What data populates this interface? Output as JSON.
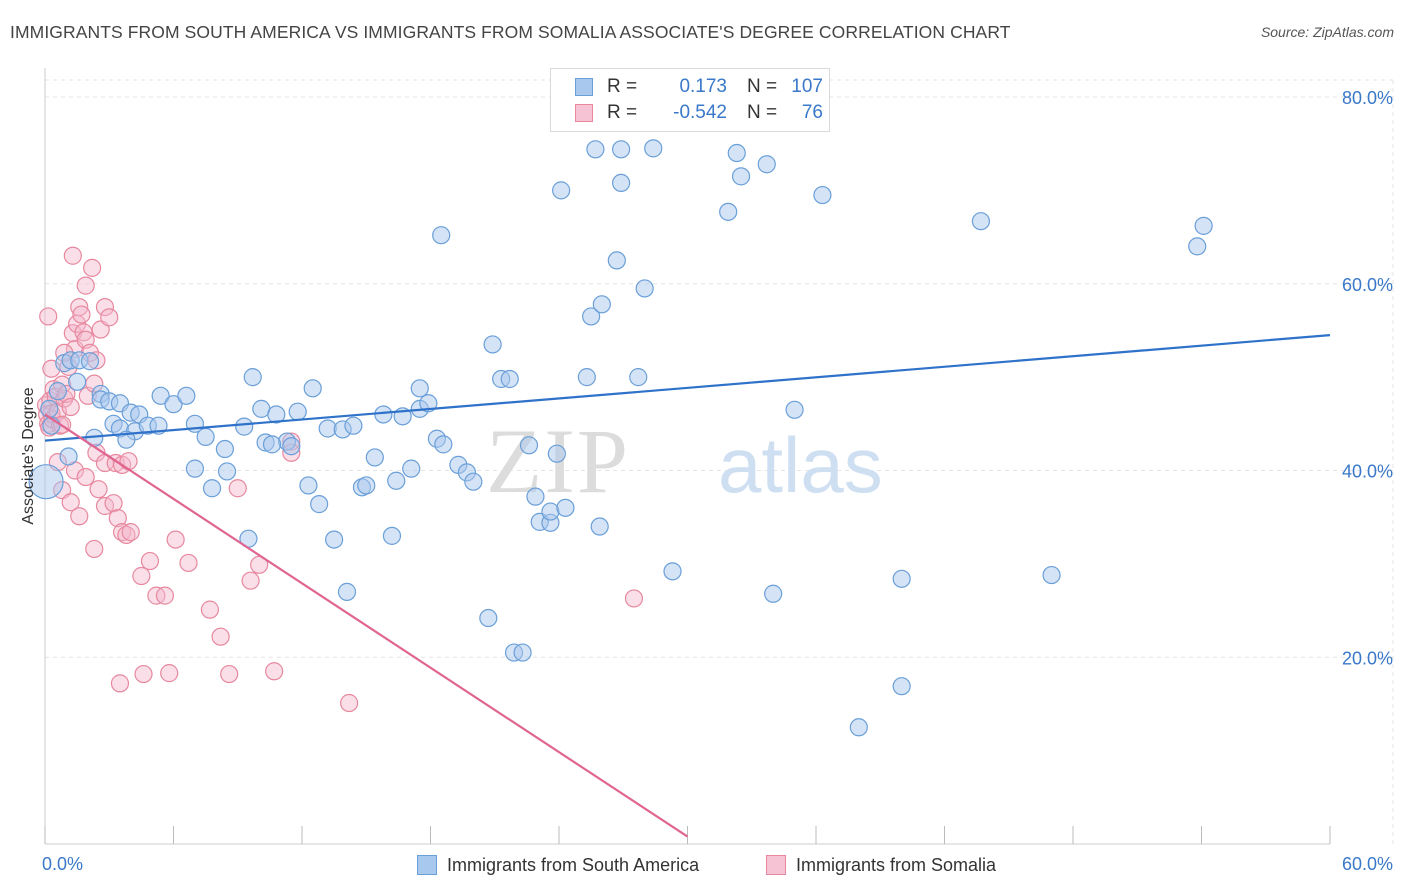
{
  "title": "IMMIGRANTS FROM SOUTH AMERICA VS IMMIGRANTS FROM SOMALIA ASSOCIATE'S DEGREE CORRELATION CHART",
  "source": "Source: ZipAtlas.com",
  "watermark": {
    "zip": "ZIP",
    "atlas": "atlas"
  },
  "stats": [
    {
      "r_label": "R =",
      "r_value": "0.173",
      "n_label": "N =",
      "n_value": "107"
    },
    {
      "r_label": "R =",
      "r_value": "-0.542",
      "n_label": "N =",
      "n_value": "76"
    }
  ],
  "legend": [
    {
      "label": "Immigrants from South America"
    },
    {
      "label": "Immigrants from Somalia"
    }
  ],
  "colors": {
    "blue_fill": "#a9c8ee",
    "blue_stroke": "#6a9fd8",
    "blue_line": "#2f72c9",
    "pink_fill": "#f5b7cb",
    "pink_stroke": "#e7889f",
    "pink_line": "#e06590",
    "tick_text": "#3a78c9",
    "grid": "#e4e4e4"
  },
  "chart_data": {
    "type": "scatter",
    "title": "IMMIGRANTS FROM SOUTH AMERICA VS IMMIGRANTS FROM SOMALIA ASSOCIATE'S DEGREE CORRELATION CHART",
    "xlabel": "",
    "ylabel": "Associate's Degree",
    "xlim": [
      0,
      60
    ],
    "ylim": [
      0,
      80
    ],
    "x_tick_labels": [
      "0.0%",
      "60.0%"
    ],
    "y_ticks": [
      20,
      40,
      60,
      80
    ],
    "y_tick_labels": [
      "20.0%",
      "40.0%",
      "60.0%",
      "80.0%"
    ],
    "grid": true,
    "series": [
      {
        "name": "Immigrants from South America",
        "r": 0.173,
        "n": 107,
        "trend": {
          "x": [
            0,
            60
          ],
          "y": [
            43.2,
            54.5
          ]
        },
        "points": [
          [
            0.05,
            38.8
          ],
          [
            0.3,
            44.8
          ],
          [
            0.6,
            48.5
          ],
          [
            0.9,
            51.5
          ],
          [
            1.2,
            51.8
          ],
          [
            1.6,
            51.8
          ],
          [
            1.5,
            49.5
          ],
          [
            2.1,
            51.7
          ],
          [
            2.6,
            48.2
          ],
          [
            2.6,
            47.6
          ],
          [
            3.0,
            47.4
          ],
          [
            3.5,
            47.2
          ],
          [
            3.2,
            45.0
          ],
          [
            3.5,
            44.5
          ],
          [
            4.0,
            46.2
          ],
          [
            4.4,
            46.0
          ],
          [
            4.2,
            44.2
          ],
          [
            4.8,
            44.8
          ],
          [
            5.3,
            44.8
          ],
          [
            5.4,
            48.0
          ],
          [
            6.0,
            47.1
          ],
          [
            6.6,
            48.0
          ],
          [
            7.0,
            45.0
          ],
          [
            7.5,
            43.6
          ],
          [
            7.0,
            40.2
          ],
          [
            8.4,
            42.3
          ],
          [
            7.8,
            38.1
          ],
          [
            8.5,
            39.9
          ],
          [
            9.3,
            44.7
          ],
          [
            9.5,
            32.7
          ],
          [
            9.7,
            50.0
          ],
          [
            10.1,
            46.6
          ],
          [
            10.3,
            43.0
          ],
          [
            10.8,
            46.0
          ],
          [
            11.3,
            43.1
          ],
          [
            11.5,
            42.6
          ],
          [
            11.8,
            46.3
          ],
          [
            12.3,
            38.4
          ],
          [
            12.5,
            48.8
          ],
          [
            12.8,
            36.4
          ],
          [
            13.2,
            44.5
          ],
          [
            13.5,
            32.6
          ],
          [
            13.9,
            44.4
          ],
          [
            14.4,
            44.8
          ],
          [
            14.1,
            27.0
          ],
          [
            14.8,
            38.2
          ],
          [
            15.0,
            38.4
          ],
          [
            15.4,
            41.4
          ],
          [
            15.8,
            46.0
          ],
          [
            16.2,
            33.0
          ],
          [
            16.4,
            38.9
          ],
          [
            16.7,
            45.8
          ],
          [
            17.1,
            40.2
          ],
          [
            17.5,
            46.6
          ],
          [
            17.5,
            48.8
          ],
          [
            17.9,
            47.2
          ],
          [
            18.3,
            43.4
          ],
          [
            18.6,
            42.8
          ],
          [
            18.5,
            65.2
          ],
          [
            19.3,
            40.6
          ],
          [
            19.7,
            39.8
          ],
          [
            20.0,
            38.8
          ],
          [
            20.9,
            53.5
          ],
          [
            21.3,
            49.8
          ],
          [
            21.7,
            49.8
          ],
          [
            20.7,
            24.2
          ],
          [
            21.9,
            20.5
          ],
          [
            22.3,
            20.5
          ],
          [
            22.6,
            42.7
          ],
          [
            22.9,
            37.2
          ],
          [
            23.1,
            34.5
          ],
          [
            23.6,
            34.4
          ],
          [
            23.6,
            35.6
          ],
          [
            23.9,
            41.8
          ],
          [
            24.3,
            36.0
          ],
          [
            24.1,
            70.0
          ],
          [
            25.3,
            50.0
          ],
          [
            25.5,
            56.5
          ],
          [
            25.7,
            74.4
          ],
          [
            26.0,
            57.8
          ],
          [
            26.9,
            74.4
          ],
          [
            26.7,
            62.5
          ],
          [
            26.9,
            70.8
          ],
          [
            27.7,
            50.0
          ],
          [
            28.0,
            59.5
          ],
          [
            28.4,
            74.5
          ],
          [
            29.3,
            29.2
          ],
          [
            31.9,
            67.7
          ],
          [
            32.3,
            74.0
          ],
          [
            32.5,
            71.5
          ],
          [
            33.7,
            72.8
          ],
          [
            34.0,
            26.8
          ],
          [
            35.0,
            46.5
          ],
          [
            36.3,
            69.5
          ],
          [
            38.0,
            12.5
          ],
          [
            40.0,
            28.4
          ],
          [
            40.0,
            16.9
          ],
          [
            43.7,
            66.7
          ],
          [
            47.0,
            28.8
          ],
          [
            53.8,
            64.0
          ],
          [
            54.1,
            66.2
          ],
          [
            25.9,
            34.0
          ],
          [
            10.6,
            42.8
          ],
          [
            3.8,
            43.3
          ],
          [
            2.3,
            43.5
          ],
          [
            1.1,
            41.5
          ],
          [
            0.2,
            46.6
          ]
        ]
      },
      {
        "name": "Immigrants from Somalia",
        "r": -0.542,
        "n": 76,
        "trend": {
          "x": [
            0,
            30.0
          ],
          "y": [
            46.0,
            0.8
          ]
        },
        "points": [
          [
            0.05,
            47.0
          ],
          [
            0.1,
            46.0
          ],
          [
            0.15,
            45.0
          ],
          [
            0.2,
            44.6
          ],
          [
            0.25,
            47.5
          ],
          [
            0.3,
            46.1
          ],
          [
            0.35,
            45.5
          ],
          [
            0.4,
            48.7
          ],
          [
            0.5,
            47.9
          ],
          [
            0.6,
            46.3
          ],
          [
            0.7,
            44.8
          ],
          [
            0.8,
            49.2
          ],
          [
            0.9,
            47.7
          ],
          [
            1.0,
            48.2
          ],
          [
            1.1,
            51.1
          ],
          [
            1.2,
            46.8
          ],
          [
            1.3,
            54.7
          ],
          [
            1.4,
            53.0
          ],
          [
            1.5,
            55.7
          ],
          [
            1.6,
            57.5
          ],
          [
            1.7,
            56.7
          ],
          [
            1.8,
            54.8
          ],
          [
            1.9,
            54.0
          ],
          [
            2.0,
            48.0
          ],
          [
            2.1,
            52.6
          ],
          [
            2.3,
            49.3
          ],
          [
            2.4,
            51.8
          ],
          [
            2.6,
            55.1
          ],
          [
            2.8,
            57.5
          ],
          [
            3.0,
            56.4
          ],
          [
            0.15,
            56.5
          ],
          [
            0.3,
            50.9
          ],
          [
            0.9,
            52.6
          ],
          [
            1.3,
            63.0
          ],
          [
            1.9,
            59.8
          ],
          [
            2.2,
            61.7
          ],
          [
            0.8,
            44.9
          ],
          [
            0.6,
            40.9
          ],
          [
            1.4,
            40.0
          ],
          [
            1.9,
            39.3
          ],
          [
            2.4,
            41.9
          ],
          [
            2.8,
            40.8
          ],
          [
            3.3,
            40.8
          ],
          [
            3.6,
            40.6
          ],
          [
            2.5,
            38.0
          ],
          [
            2.8,
            36.2
          ],
          [
            3.2,
            36.5
          ],
          [
            3.4,
            34.9
          ],
          [
            0.8,
            37.9
          ],
          [
            1.2,
            36.6
          ],
          [
            1.6,
            35.1
          ],
          [
            2.3,
            31.6
          ],
          [
            3.6,
            33.4
          ],
          [
            3.8,
            33.1
          ],
          [
            4.0,
            33.4
          ],
          [
            4.5,
            28.7
          ],
          [
            4.9,
            30.3
          ],
          [
            5.2,
            26.6
          ],
          [
            5.6,
            26.6
          ],
          [
            6.1,
            32.6
          ],
          [
            6.7,
            30.1
          ],
          [
            7.7,
            25.1
          ],
          [
            8.2,
            22.2
          ],
          [
            8.6,
            18.2
          ],
          [
            9.0,
            38.1
          ],
          [
            9.6,
            28.2
          ],
          [
            10.0,
            29.9
          ],
          [
            10.7,
            18.5
          ],
          [
            11.5,
            43.1
          ],
          [
            11.5,
            41.9
          ],
          [
            14.2,
            15.1
          ],
          [
            3.5,
            17.2
          ],
          [
            4.6,
            18.2
          ],
          [
            5.8,
            18.3
          ],
          [
            27.5,
            26.3
          ],
          [
            3.9,
            41.0
          ]
        ]
      }
    ]
  }
}
